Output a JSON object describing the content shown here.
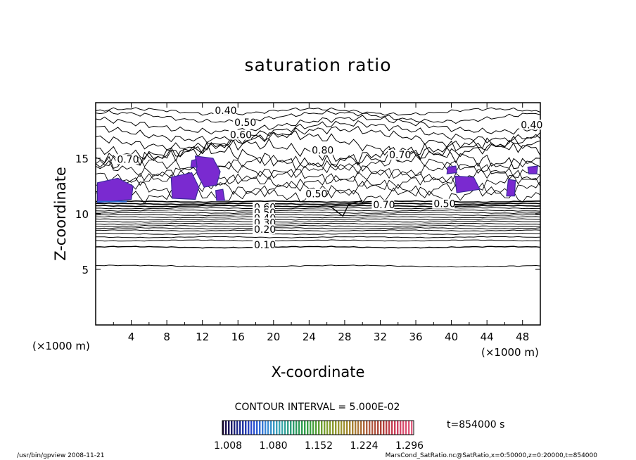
{
  "chart_data": {
    "type": "contour",
    "title": "saturation ratio",
    "xlabel": "X-coordinate",
    "ylabel": "Z-coordinate",
    "x_unit": "(×1000 m)",
    "z_unit": "(×1000 m)",
    "xlim": [
      0,
      50
    ],
    "ylim": [
      0,
      20
    ],
    "x_ticks": [
      4,
      8,
      12,
      16,
      20,
      24,
      28,
      32,
      36,
      40,
      44,
      48
    ],
    "y_ticks": [
      5,
      10,
      15
    ],
    "contour_interval_text": "CONTOUR INTERVAL = 5.000E-02",
    "time_label": "t=854000  s",
    "contour_labels": [
      {
        "text": "0.40",
        "x": 13.4,
        "z": 19.0
      },
      {
        "text": "0.50",
        "x": 15.6,
        "z": 17.9
      },
      {
        "text": "0.60",
        "x": 15.1,
        "z": 16.8
      },
      {
        "text": "0.80",
        "x": 24.3,
        "z": 15.4
      },
      {
        "text": "0.70",
        "x": 33.0,
        "z": 15.0
      },
      {
        "text": "0.40",
        "x": 47.8,
        "z": 17.7
      },
      {
        "text": "0.70",
        "x": 2.4,
        "z": 14.6
      },
      {
        "text": "0.50",
        "x": 23.6,
        "z": 11.5
      },
      {
        "text": "0.70",
        "x": 31.2,
        "z": 10.5
      },
      {
        "text": "0.50",
        "x": 38.0,
        "z": 10.6
      },
      {
        "text": "0.60",
        "x": 17.8,
        "z": 10.3
      },
      {
        "text": "0.50",
        "x": 17.8,
        "z": 9.8
      },
      {
        "text": "0.40",
        "x": 17.8,
        "z": 9.3
      },
      {
        "text": "0.30",
        "x": 17.8,
        "z": 8.9
      },
      {
        "text": "0.20",
        "x": 17.8,
        "z": 8.3
      },
      {
        "text": "0.10",
        "x": 17.8,
        "z": 6.9
      }
    ],
    "colorbar": {
      "ticks": [
        "1.008",
        "1.080",
        "1.152",
        "1.224",
        "1.296"
      ],
      "colors": [
        "#1a0a3a",
        "#1e2a8a",
        "#2a4ad0",
        "#3a8ad8",
        "#3aa8b0",
        "#2a9a60",
        "#3aa040",
        "#7aa030",
        "#9a9830",
        "#a88030",
        "#b06040",
        "#b04038",
        "#d04060",
        "#e06080"
      ]
    },
    "grid": false
  },
  "footer": {
    "left": "/usr/bin/gpview   2008-11-21",
    "right": "MarsCond_SatRatio.nc@SatRatio,x=0:50000,z=0:20000,t=854000"
  }
}
